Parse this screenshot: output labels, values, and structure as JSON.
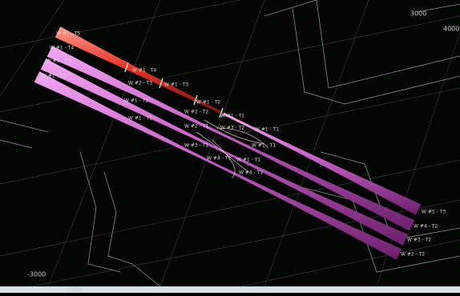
{
  "axis_labels": [
    "3000",
    "4000",
    "-3000",
    "3000"
  ],
  "well_labels": [
    "W #1 - T5",
    "W #1 - T4",
    "W #1 - T3",
    "W #1 - T2",
    "W #1 - T4",
    "W #2 - T3",
    "W #1 - T3",
    "W #1 - T2",
    "W #1 - T2",
    "W #1 - T1",
    "W #2 - T2",
    "W #1 - T1",
    "W #2 - T1",
    "W #3 - T2",
    "W #1 - T1",
    "W #3 - T1",
    "W #1 - T1",
    "W #4 - T1",
    "W #1 - T1",
    "W #4 - T1",
    "W #5 - T3",
    "W #4 - T2",
    "W #3 - T2",
    "W #2 - T2"
  ]
}
